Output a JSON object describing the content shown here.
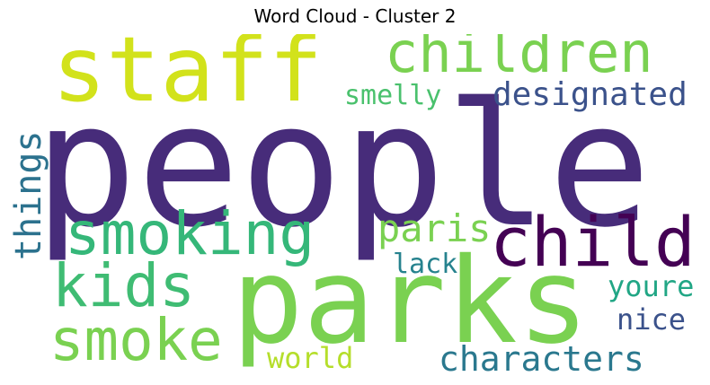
{
  "title": "Word Cloud - Cluster 2",
  "words": [
    {
      "text": "people",
      "color": "#472c7a",
      "orientation": "horizontal"
    },
    {
      "text": "parks",
      "color": "#7ad151",
      "orientation": "horizontal"
    },
    {
      "text": "staff",
      "color": "#d2e21b",
      "orientation": "horizontal"
    },
    {
      "text": "children",
      "color": "#7ad151",
      "orientation": "horizontal"
    },
    {
      "text": "smoking",
      "color": "#35b779",
      "orientation": "horizontal"
    },
    {
      "text": "child",
      "color": "#440154",
      "orientation": "horizontal"
    },
    {
      "text": "kids",
      "color": "#3fbc73",
      "orientation": "horizontal"
    },
    {
      "text": "smoke",
      "color": "#7ad151",
      "orientation": "horizontal"
    },
    {
      "text": "designated",
      "color": "#3b528b",
      "orientation": "horizontal"
    },
    {
      "text": "smelly",
      "color": "#4ac16d",
      "orientation": "horizontal"
    },
    {
      "text": "things",
      "color": "#2c728e",
      "orientation": "vertical"
    },
    {
      "text": "paris",
      "color": "#7ad151",
      "orientation": "horizontal"
    },
    {
      "text": "lack",
      "color": "#26828e",
      "orientation": "horizontal"
    },
    {
      "text": "youre",
      "color": "#21a685",
      "orientation": "horizontal"
    },
    {
      "text": "nice",
      "color": "#3b528b",
      "orientation": "horizontal"
    },
    {
      "text": "characters",
      "color": "#2a788e",
      "orientation": "horizontal"
    },
    {
      "text": "world",
      "color": "#b5de2b",
      "orientation": "horizontal"
    }
  ]
}
